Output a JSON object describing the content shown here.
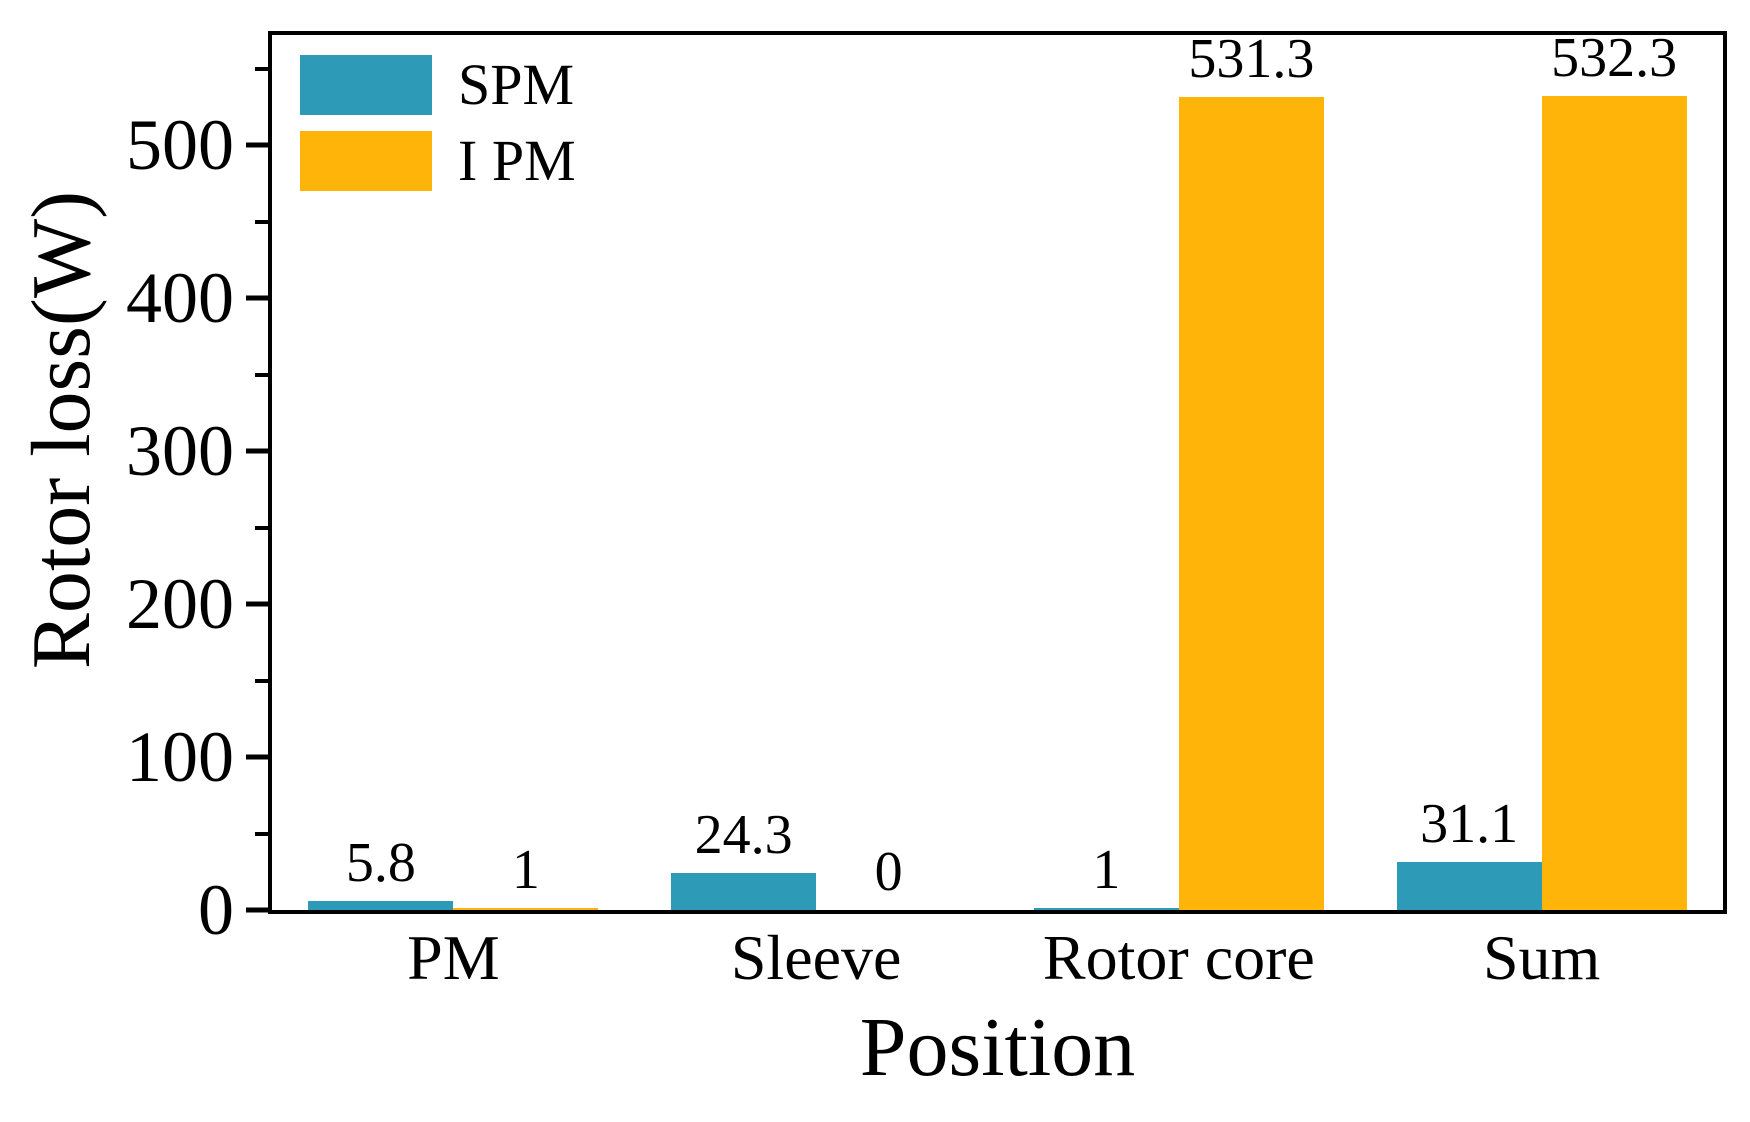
{
  "chart_data": {
    "type": "bar",
    "title": "",
    "xlabel": "Position",
    "ylabel": "Rotor loss(W)",
    "categories": [
      "PM",
      "Sleeve",
      "Rotor core",
      "Sum"
    ],
    "series": [
      {
        "name": "SPM",
        "color": "#2D9AB8",
        "values": [
          5.8,
          24.3,
          1,
          31.1
        ]
      },
      {
        "name": "I PM",
        "color": "#FFB40A",
        "values": [
          1,
          0,
          531.3,
          532.3
        ]
      }
    ],
    "ylim": [
      0,
      572
    ],
    "yticks": [
      0,
      100,
      200,
      300,
      400,
      500
    ],
    "yticks_minor": [
      50,
      150,
      250,
      350,
      450,
      550
    ],
    "grid": false,
    "legend_position": "upper-left",
    "bar_value_labels": true,
    "colors": {
      "axis": "#000000",
      "background": "#FFFFFF"
    }
  }
}
